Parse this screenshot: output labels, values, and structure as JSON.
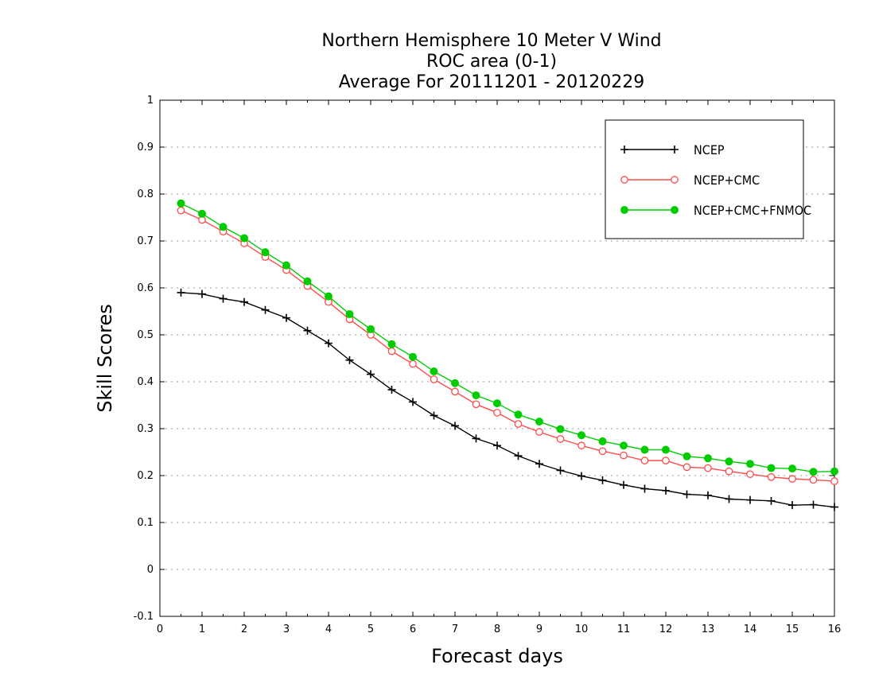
{
  "chart_data": {
    "type": "line",
    "title": [
      "Northern Hemisphere 10 Meter V Wind",
      "ROC area (0-1)",
      "Average For 20111201 - 20120229"
    ],
    "xlabel": "Forecast days",
    "ylabel": "Skill Scores",
    "xlim": [
      0,
      16
    ],
    "ylim": [
      -0.1,
      1
    ],
    "xticks": [
      "0",
      "1",
      "2",
      "3",
      "4",
      "5",
      "6",
      "7",
      "8",
      "9",
      "10",
      "11",
      "12",
      "13",
      "14",
      "15",
      "16"
    ],
    "yticks": [
      "-0.1",
      "0",
      "0.1",
      "0.2",
      "0.3",
      "0.4",
      "0.5",
      "0.6",
      "0.7",
      "0.8",
      "0.9",
      "1"
    ],
    "grid": "horizontal dotted",
    "legend_position": "top-right",
    "x": [
      0.5,
      1,
      1.5,
      2,
      2.5,
      3,
      3.5,
      4,
      4.5,
      5,
      5.5,
      6,
      6.5,
      7,
      7.5,
      8,
      8.5,
      9,
      9.5,
      10,
      10.5,
      11,
      11.5,
      12,
      12.5,
      13,
      13.5,
      14,
      14.5,
      15,
      15.5,
      16
    ],
    "series": [
      {
        "name": "NCEP",
        "color": "#000000",
        "marker": "plus",
        "values": [
          0.59,
          0.587,
          0.577,
          0.57,
          0.553,
          0.536,
          0.509,
          0.482,
          0.446,
          0.416,
          0.383,
          0.357,
          0.328,
          0.306,
          0.279,
          0.264,
          0.242,
          0.225,
          0.211,
          0.199,
          0.19,
          0.18,
          0.172,
          0.168,
          0.16,
          0.158,
          0.15,
          0.148,
          0.146,
          0.137,
          0.138,
          0.133
        ]
      },
      {
        "name": "NCEP+CMC",
        "color": "#ff4a4a",
        "marker": "open-circle",
        "values": [
          0.765,
          0.745,
          0.72,
          0.695,
          0.666,
          0.638,
          0.604,
          0.57,
          0.533,
          0.5,
          0.465,
          0.438,
          0.405,
          0.379,
          0.352,
          0.334,
          0.31,
          0.293,
          0.278,
          0.264,
          0.252,
          0.243,
          0.232,
          0.232,
          0.218,
          0.216,
          0.209,
          0.203,
          0.197,
          0.193,
          0.191,
          0.188
        ]
      },
      {
        "name": "NCEP+CMC+FNMOC",
        "color": "#00cc00",
        "marker": "filled-circle",
        "values": [
          0.78,
          0.758,
          0.73,
          0.706,
          0.676,
          0.648,
          0.614,
          0.582,
          0.544,
          0.512,
          0.48,
          0.453,
          0.422,
          0.397,
          0.371,
          0.354,
          0.33,
          0.315,
          0.299,
          0.286,
          0.273,
          0.264,
          0.255,
          0.255,
          0.241,
          0.237,
          0.23,
          0.225,
          0.216,
          0.215,
          0.208,
          0.209
        ]
      }
    ]
  }
}
